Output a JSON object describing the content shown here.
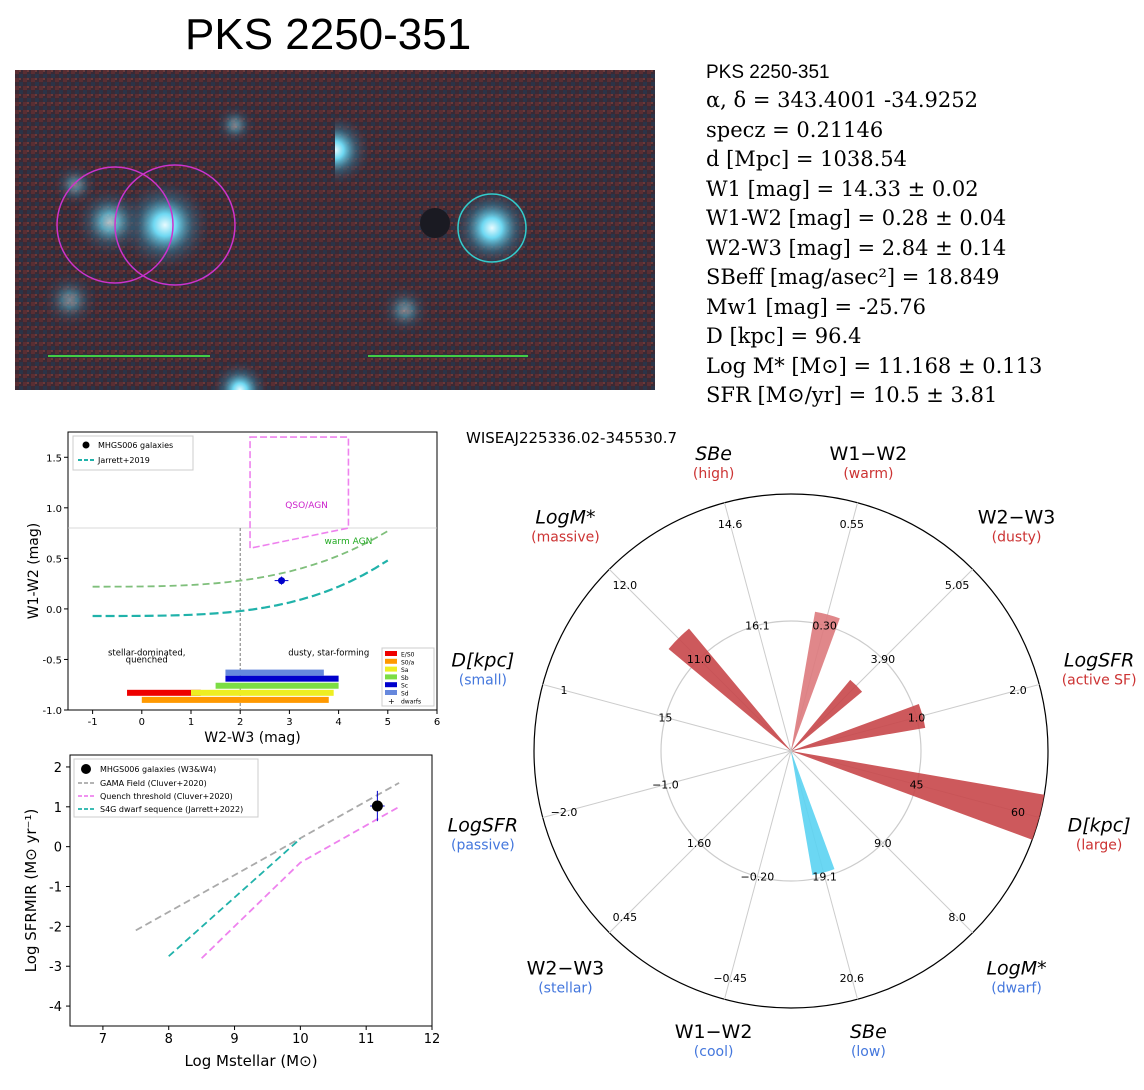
{
  "title": "PKS 2250-351",
  "colors": {
    "agn_line": "#7fbf7b",
    "dwarf_line": "#20b2aa",
    "qso_box": "#ee82ee",
    "gama": "#aaaaaa",
    "quench": "#ee82ee",
    "s4g": "#20b2aa",
    "red_wedge": "#c8474a",
    "blue_wedge": "#5bd3f2",
    "pink_wedge": "#dd7a7d"
  },
  "properties": {
    "name": "PKS 2250-351",
    "coords": "α, δ = 343.4001 -34.9252",
    "specz": "specz = 0.21146",
    "distance": "d [Mpc] = 1038.54",
    "w1": "W1 [mag] = 14.33 ± 0.02",
    "w1w2": "W1-W2 [mag] = 0.28 ± 0.04",
    "w2w3": "W2-W3 [mag] = 2.84 ± 0.14",
    "sbeff": "SBeff [mag/asec²] = 18.849",
    "mw1": "Mw1 [mag] = -25.76",
    "diam": "D [kpc] = 96.4",
    "logm": "Log M* [M⊙] = 11.168 ± 0.113",
    "sfr": "SFR [M⊙/yr] = 10.5 ± 3.81"
  },
  "chart_data": [
    {
      "type": "scatter",
      "title": "",
      "xlabel": "W2-W3 (mag)",
      "ylabel": "W1-W2 (mag)",
      "xlim": [
        -1.5,
        6
      ],
      "ylim": [
        -1,
        1.75
      ],
      "xticks": [
        "-1",
        "0",
        "1",
        "2",
        "3",
        "4",
        "5",
        "6"
      ],
      "yticks": [
        "-1.0",
        "-0.5",
        "0.0",
        "0.5",
        "1.0",
        "1.5"
      ],
      "legend": [
        "MHGS006 galaxies",
        "Jarrett+2019"
      ],
      "points": [
        {
          "x": 2.84,
          "y": 0.28,
          "xerr": 0.14,
          "yerr": 0.04
        }
      ],
      "region_labels": {
        "qso": "QSO/AGN",
        "warm": "warm AGN",
        "stellar": "stellar-dominated,",
        "quenched": "quenched",
        "dusty": "dusty, star-forming"
      },
      "type_bars": [
        {
          "name": "E/S0",
          "color": "#ee0000",
          "x0": -0.3,
          "x1": 1.2,
          "y": -0.83
        },
        {
          "name": "S0/a",
          "color": "#ff9900",
          "x0": 0.0,
          "x1": 3.8,
          "y": -0.9
        },
        {
          "name": "Sa",
          "color": "#eeee22",
          "x0": 1.0,
          "x1": 3.9,
          "y": -0.83
        },
        {
          "name": "Sb",
          "color": "#7cdd44",
          "x0": 1.5,
          "x1": 4.0,
          "y": -0.76
        },
        {
          "name": "Sc",
          "color": "#0000cc",
          "x0": 1.7,
          "x1": 4.0,
          "y": -0.69
        },
        {
          "name": "Sd",
          "color": "#6688dd",
          "x0": 1.7,
          "x1": 3.7,
          "y": -0.63
        }
      ],
      "type_legend": [
        "E/S0",
        "S0/a",
        "Sa",
        "Sb",
        "Sc",
        "Sd",
        "dwarfs"
      ]
    },
    {
      "type": "line",
      "xlabel": "Log Mstellar (M⊙)",
      "ylabel": "Log SFRMIR (M⊙ yr⁻¹)",
      "xlim": [
        6.5,
        12
      ],
      "ylim": [
        -4.5,
        2.3
      ],
      "xticks": [
        "7",
        "8",
        "9",
        "10",
        "11",
        "12"
      ],
      "yticks": [
        "-4",
        "-3",
        "-2",
        "-1",
        "0",
        "1",
        "2"
      ],
      "legend": [
        "MHGS006 galaxies (W3&W4)",
        "GAMA Field (Cluver+2020)",
        "Quench threshold (Cluver+2020)",
        "S4G dwarf sequence (Jarrett+2022)"
      ],
      "series": [
        {
          "name": "GAMA Field (Cluver+2020)",
          "x": [
            7.5,
            11.5
          ],
          "y": [
            -2.1,
            1.6
          ]
        },
        {
          "name": "Quench threshold (Cluver+2020)",
          "x": [
            8.5,
            10.0,
            11.5
          ],
          "y": [
            -2.8,
            -0.4,
            1.0
          ]
        },
        {
          "name": "S4G dwarf sequence (Jarrett+2022)",
          "x": [
            8.0,
            10.0
          ],
          "y": [
            -2.75,
            0.2
          ]
        }
      ],
      "points": [
        {
          "x": 11.17,
          "y": 1.02,
          "xerr": 0.11,
          "yerr": 0.38
        }
      ]
    },
    {
      "type": "radar",
      "title": "WISEAJ225336.02-345530.7",
      "axes": [
        {
          "name": "W1−W2",
          "hint": "(warm)",
          "outer": "0.55",
          "inner": "0.30",
          "value": 0.55,
          "side": "hi"
        },
        {
          "name": "W2−W3",
          "hint": "(dusty)",
          "outer": "5.05",
          "inner": "3.90",
          "value": 0.36,
          "side": "hi"
        },
        {
          "name": "LogSFR",
          "hint": "(active SF)",
          "outer": "2.0",
          "inner": "1.0",
          "value": 0.53,
          "side": "hi"
        },
        {
          "name": "D[kpc]",
          "hint": "(large)",
          "outer": "60",
          "inner": "45",
          "value": 1.0,
          "side": "hi"
        },
        {
          "name": "LogM*",
          "hint": "(dwarf)",
          "outer": "8.0",
          "inner": "9.0",
          "value": 0.0,
          "side": "lo"
        },
        {
          "name": "SBe",
          "hint": "(low)",
          "outer": "20.6",
          "inner": "19.1",
          "value": 0.49,
          "side": "lo"
        },
        {
          "name": "W1−W2",
          "hint": "(cool)",
          "outer": "−0.45",
          "inner": "−0.20",
          "value": 0.0,
          "side": "lo"
        },
        {
          "name": "W2−W3",
          "hint": "(stellar)",
          "outer": "0.45",
          "inner": "1.60",
          "value": 0.0,
          "side": "lo"
        },
        {
          "name": "LogSFR",
          "hint": "(passive)",
          "outer": "−2.0",
          "inner": "−1.0",
          "value": 0.0,
          "side": "lo"
        },
        {
          "name": "D[kpc]",
          "hint": "(small)",
          "outer": "1",
          "inner": "15",
          "value": 0.0,
          "side": "lo"
        },
        {
          "name": "LogM*",
          "hint": "(massive)",
          "outer": "12.0",
          "inner": "11.0",
          "value": 0.62,
          "side": "hi"
        },
        {
          "name": "SBe",
          "hint": "(high)",
          "outer": "14.6",
          "inner": "16.1",
          "value": 0.0,
          "side": "hi"
        }
      ]
    }
  ]
}
